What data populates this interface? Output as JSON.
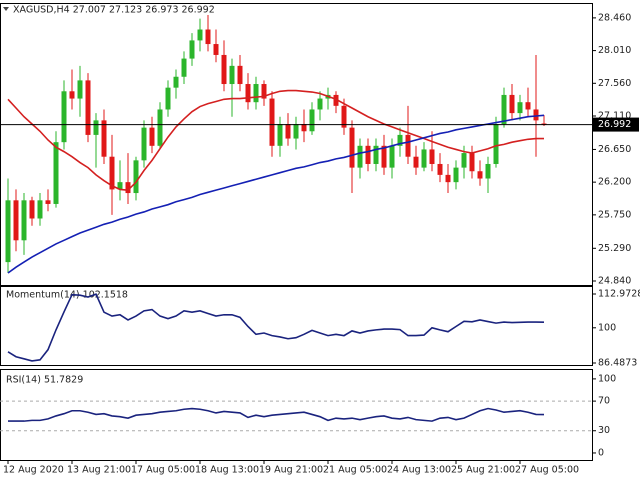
{
  "chart_data": [
    {
      "type": "candlestick",
      "title": "XAGUSD,H4  27.007 27.123 26.973 26.992",
      "categories": [
        "12 Aug 2020",
        null,
        null,
        null,
        null,
        null,
        null,
        null,
        "13 Aug 21:00",
        null,
        null,
        null,
        null,
        null,
        null,
        null,
        "17 Aug 05:00",
        null,
        null,
        null,
        null,
        null,
        null,
        null,
        "18 Aug 13:00",
        null,
        null,
        null,
        null,
        null,
        null,
        null,
        "19 Aug 21:00",
        null,
        null,
        null,
        null,
        null,
        null,
        null,
        "21 Aug 05:00",
        null,
        null,
        null,
        null,
        null,
        null,
        null,
        "24 Aug 13:00",
        null,
        null,
        null,
        null,
        null,
        null,
        null,
        "25 Aug 21:00",
        null,
        null,
        null,
        null,
        null,
        null,
        null,
        "27 Aug 05:00",
        null,
        null,
        null
      ],
      "open": [
        25.1,
        25.95,
        25.4,
        25.95,
        25.7,
        25.95,
        25.9,
        26.75,
        27.45,
        27.35,
        27.6,
        26.85,
        27.05,
        26.55,
        26.1,
        26.2,
        26.05,
        26.5,
        26.95,
        26.7,
        27.2,
        27.5,
        27.65,
        27.9,
        28.15,
        28.3,
        28.1,
        27.95,
        27.55,
        27.8,
        27.55,
        27.3,
        27.55,
        27.35,
        26.7,
        27.0,
        26.8,
        27.0,
        26.9,
        27.2,
        27.35,
        27.4,
        27.25,
        26.95,
        26.4,
        26.7,
        26.45,
        26.7,
        26.4,
        26.7,
        26.85,
        26.55,
        26.4,
        26.65,
        26.45,
        26.3,
        26.2,
        26.4,
        26.6,
        26.35,
        26.25,
        26.45,
        27.0,
        27.4,
        27.15,
        27.3,
        27.2,
        27.007
      ],
      "high": [
        26.25,
        26.1,
        26.05,
        26.0,
        26.05,
        26.1,
        26.9,
        27.6,
        27.75,
        27.8,
        27.7,
        27.15,
        27.2,
        26.85,
        26.5,
        26.6,
        26.55,
        27.05,
        27.1,
        27.3,
        27.6,
        27.75,
        28.0,
        28.25,
        28.45,
        28.5,
        28.3,
        28.15,
        27.9,
        27.95,
        27.7,
        27.65,
        27.6,
        27.45,
        27.1,
        27.15,
        27.1,
        27.2,
        27.3,
        27.45,
        27.5,
        27.45,
        27.35,
        27.05,
        26.8,
        26.8,
        26.8,
        26.85,
        26.8,
        26.95,
        27.25,
        26.7,
        26.75,
        26.9,
        26.6,
        26.45,
        26.5,
        26.7,
        26.7,
        26.5,
        26.55,
        27.1,
        27.5,
        27.55,
        27.4,
        27.5,
        27.95,
        27.123
      ],
      "low": [
        24.95,
        25.25,
        25.2,
        25.6,
        25.6,
        25.8,
        25.85,
        26.65,
        27.2,
        27.1,
        26.75,
        26.4,
        26.45,
        25.75,
        25.95,
        25.9,
        25.95,
        26.4,
        26.6,
        26.65,
        27.1,
        27.35,
        27.55,
        27.8,
        28.0,
        28.0,
        27.85,
        27.45,
        27.1,
        27.45,
        27.2,
        27.2,
        27.25,
        26.55,
        26.55,
        26.7,
        26.65,
        26.75,
        26.85,
        27.05,
        27.2,
        27.15,
        26.85,
        26.05,
        26.25,
        26.35,
        26.35,
        26.3,
        26.25,
        26.55,
        26.45,
        26.3,
        26.35,
        26.35,
        26.2,
        26.05,
        26.1,
        26.25,
        26.25,
        26.15,
        26.05,
        26.4,
        26.95,
        27.05,
        27.05,
        27.1,
        26.55,
        26.973
      ],
      "close": [
        25.95,
        25.4,
        25.95,
        25.7,
        25.95,
        25.9,
        26.75,
        27.45,
        27.35,
        27.6,
        26.85,
        27.05,
        26.55,
        26.1,
        26.2,
        26.05,
        26.5,
        26.95,
        26.7,
        27.2,
        27.5,
        27.65,
        27.9,
        28.15,
        28.3,
        28.1,
        27.95,
        27.55,
        27.8,
        27.55,
        27.3,
        27.55,
        27.35,
        26.7,
        27.0,
        26.8,
        27.0,
        26.9,
        27.2,
        27.35,
        27.4,
        27.25,
        26.95,
        26.4,
        26.7,
        26.45,
        26.7,
        26.4,
        26.7,
        26.85,
        26.55,
        26.4,
        26.65,
        26.45,
        26.3,
        26.2,
        26.4,
        26.6,
        26.35,
        26.25,
        26.45,
        27.0,
        27.4,
        27.15,
        27.3,
        27.2,
        27.05,
        26.992
      ],
      "up_color": "#2bb52b",
      "down_color": "#e01818",
      "series": [
        {
          "color": "#d42020",
          "values": [
            27.34,
            27.22,
            27.1,
            27.0,
            26.9,
            26.78,
            26.68,
            26.62,
            26.55,
            26.47,
            26.4,
            26.3,
            26.22,
            26.15,
            26.1,
            26.09,
            26.2,
            26.36,
            26.5,
            26.66,
            26.82,
            26.96,
            27.07,
            27.17,
            27.24,
            27.28,
            27.31,
            27.34,
            27.35,
            27.35,
            27.36,
            27.37,
            27.38,
            27.42,
            27.45,
            27.46,
            27.46,
            27.45,
            27.44,
            27.42,
            27.38,
            27.34,
            27.28,
            27.22,
            27.16,
            27.1,
            27.05,
            27.0,
            26.96,
            26.92,
            26.88,
            26.84,
            26.8,
            26.76,
            26.72,
            26.68,
            26.65,
            26.62,
            26.6,
            26.63,
            26.66,
            26.7,
            26.72,
            26.75,
            26.77,
            26.79,
            26.8,
            26.8
          ]
        },
        {
          "color": "#1420b4",
          "values": [
            24.95,
            25.03,
            25.1,
            25.17,
            25.23,
            25.29,
            25.35,
            25.4,
            25.45,
            25.5,
            25.54,
            25.58,
            25.62,
            25.65,
            25.69,
            25.72,
            25.76,
            25.79,
            25.83,
            25.86,
            25.89,
            25.93,
            25.96,
            25.99,
            26.03,
            26.06,
            26.09,
            26.12,
            26.15,
            26.18,
            26.21,
            26.24,
            26.27,
            26.3,
            26.33,
            26.36,
            26.39,
            26.41,
            26.44,
            26.47,
            26.49,
            26.52,
            26.54,
            26.57,
            26.6,
            26.62,
            26.65,
            26.67,
            26.7,
            26.73,
            26.75,
            26.78,
            26.81,
            26.84,
            26.87,
            26.89,
            26.92,
            26.94,
            26.96,
            26.98,
            27.0,
            27.02,
            27.04,
            27.06,
            27.08,
            27.1,
            27.11,
            27.12
          ]
        }
      ],
      "current_price": 26.992,
      "ylim": [
        24.785,
        28.651
      ],
      "yticks": [
        {
          "value": 28.46,
          "label": "28.460"
        },
        {
          "value": 28.01,
          "label": "28.010"
        },
        {
          "value": 27.56,
          "label": "27.560"
        },
        {
          "value": 27.11,
          "label": "27.110"
        },
        {
          "value": 26.65,
          "label": "26.650"
        },
        {
          "value": 26.2,
          "label": "26.200"
        },
        {
          "value": 25.75,
          "label": "25.750"
        },
        {
          "value": 25.29,
          "label": "25.290"
        },
        {
          "value": 24.84,
          "label": "24.840"
        }
      ]
    },
    {
      "type": "line",
      "title": "Momentum(14) 102.1518",
      "series": [
        {
          "color": "#1a237e",
          "values": [
            90.8,
            88.9,
            88.1,
            87.3,
            87.7,
            91.6,
            99.2,
            106.1,
            112.7,
            112.5,
            111.8,
            112.9,
            106,
            104.5,
            105,
            103,
            104.5,
            106.5,
            107,
            104.5,
            103.5,
            104.5,
            106.5,
            106,
            106.5,
            105.5,
            104.5,
            105,
            105,
            104,
            100.5,
            97.5,
            98,
            97,
            96.5,
            95.8,
            96.2,
            97.5,
            99,
            98,
            97,
            97.5,
            97,
            98.8,
            98,
            98.8,
            99.2,
            99.5,
            99.5,
            99.3,
            97,
            97,
            97.2,
            100,
            99.2,
            98.5,
            100.5,
            102.5,
            102.3,
            103,
            102.4,
            101.8,
            102.2,
            102,
            102.1,
            102.2,
            102.2,
            102.1518
          ]
        }
      ],
      "ylim": [
        85.72,
        115.66
      ],
      "yticks": [
        112.9728,
        100,
        86.4873
      ]
    },
    {
      "type": "line",
      "title": "RSI(14) 51.7829",
      "series": [
        {
          "color": "#1a237e",
          "values": [
            43,
            43,
            43,
            44,
            44,
            46,
            50,
            53,
            57,
            57,
            55,
            52,
            53,
            50,
            49,
            47,
            51,
            52,
            53,
            55,
            56,
            57,
            59,
            60,
            59,
            57,
            54,
            56,
            55,
            54,
            48,
            51,
            49,
            51,
            52,
            53,
            54,
            55,
            52,
            49,
            44,
            47,
            46,
            47,
            45,
            47,
            49,
            50,
            47,
            46,
            48,
            45,
            44,
            43,
            47,
            48,
            45,
            47,
            52,
            57,
            60,
            58,
            55,
            56,
            57,
            55,
            52,
            51.7829
          ]
        }
      ],
      "levels": [
        70,
        30
      ],
      "ylim": [
        -9.5,
        112
      ],
      "yticks": [
        100,
        70,
        30,
        0
      ]
    }
  ]
}
